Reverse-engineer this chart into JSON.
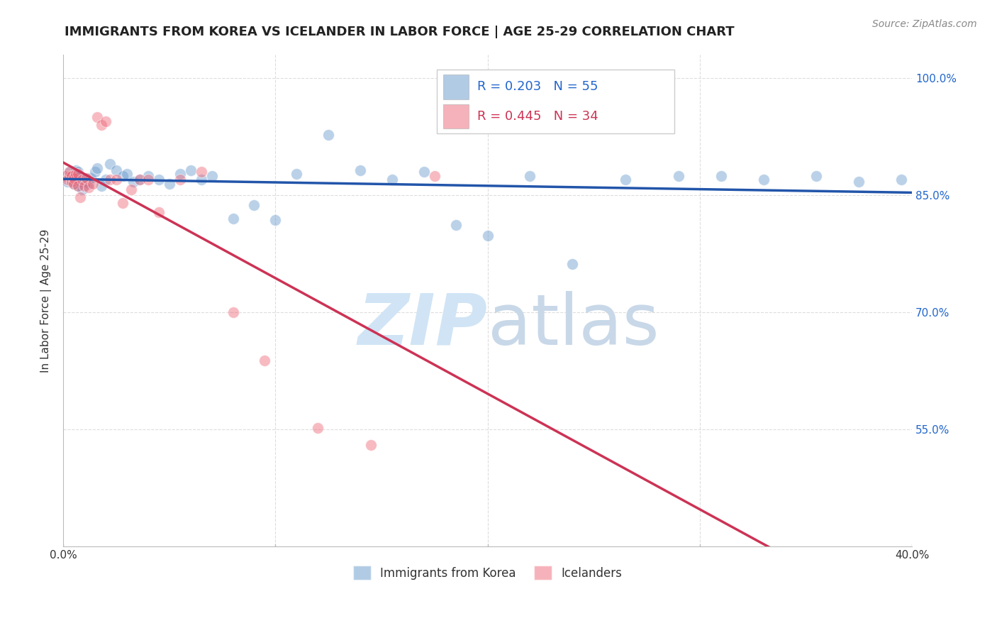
{
  "title": "IMMIGRANTS FROM KOREA VS ICELANDER IN LABOR FORCE | AGE 25-29 CORRELATION CHART",
  "source_text": "Source: ZipAtlas.com",
  "ylabel": "In Labor Force | Age 25-29",
  "x_min": 0.0,
  "x_max": 0.4,
  "y_min": 0.4,
  "y_max": 1.03,
  "y_ticks": [
    0.4,
    0.55,
    0.7,
    0.85,
    1.0
  ],
  "y_tick_labels": [
    "",
    "55.0%",
    "70.0%",
    "85.0%",
    "100.0%"
  ],
  "background_color": "#ffffff",
  "grid_color": "#dddddd",
  "korea_color": "#6699cc",
  "iceland_color": "#ee6677",
  "korea_R": 0.203,
  "korea_N": 55,
  "iceland_R": 0.445,
  "iceland_N": 34,
  "korea_line_color": "#2255aa",
  "iceland_line_color": "#cc3355",
  "watermark_color": "#d0e4f5",
  "legend_label_korea": "Immigrants from Korea",
  "legend_label_iceland": "Icelanders",
  "korea_x": [
    0.001,
    0.002,
    0.003,
    0.003,
    0.004,
    0.005,
    0.005,
    0.006,
    0.006,
    0.007,
    0.007,
    0.007,
    0.008,
    0.008,
    0.009,
    0.01,
    0.011,
    0.012,
    0.013,
    0.015,
    0.016,
    0.018,
    0.02,
    0.022,
    0.025,
    0.028,
    0.03,
    0.033,
    0.036,
    0.04,
    0.045,
    0.05,
    0.055,
    0.06,
    0.065,
    0.07,
    0.08,
    0.09,
    0.1,
    0.11,
    0.125,
    0.14,
    0.155,
    0.17,
    0.185,
    0.2,
    0.22,
    0.24,
    0.265,
    0.29,
    0.31,
    0.33,
    0.355,
    0.375,
    0.395
  ],
  "korea_y": [
    0.875,
    0.868,
    0.88,
    0.875,
    0.87,
    0.872,
    0.865,
    0.878,
    0.882,
    0.862,
    0.87,
    0.88,
    0.868,
    0.875,
    0.858,
    0.872,
    0.868,
    0.865,
    0.872,
    0.88,
    0.885,
    0.862,
    0.87,
    0.89,
    0.882,
    0.875,
    0.878,
    0.868,
    0.87,
    0.875,
    0.87,
    0.865,
    0.878,
    0.882,
    0.87,
    0.875,
    0.82,
    0.838,
    0.818,
    0.878,
    0.928,
    0.882,
    0.87,
    0.88,
    0.812,
    0.798,
    0.875,
    0.762,
    0.87,
    0.875,
    0.875,
    0.87,
    0.875,
    0.868,
    0.87
  ],
  "iceland_x": [
    0.001,
    0.002,
    0.003,
    0.003,
    0.004,
    0.004,
    0.005,
    0.005,
    0.006,
    0.007,
    0.007,
    0.008,
    0.009,
    0.01,
    0.011,
    0.012,
    0.014,
    0.016,
    0.018,
    0.02,
    0.022,
    0.025,
    0.028,
    0.032,
    0.036,
    0.04,
    0.045,
    0.055,
    0.065,
    0.08,
    0.095,
    0.12,
    0.145,
    0.175
  ],
  "iceland_y": [
    0.875,
    0.87,
    0.875,
    0.88,
    0.868,
    0.875,
    0.872,
    0.865,
    0.878,
    0.862,
    0.878,
    0.848,
    0.87,
    0.862,
    0.872,
    0.86,
    0.865,
    0.95,
    0.94,
    0.945,
    0.87,
    0.87,
    0.84,
    0.858,
    0.87,
    0.87,
    0.828,
    0.87,
    0.88,
    0.7,
    0.638,
    0.552,
    0.53,
    0.875
  ]
}
